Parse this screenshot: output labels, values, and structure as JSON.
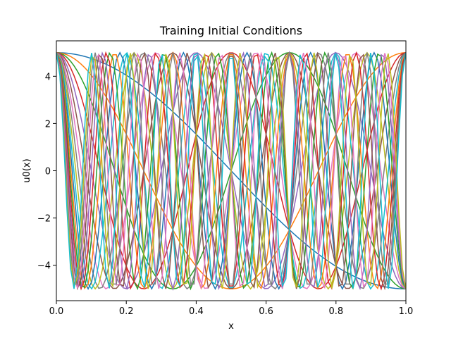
{
  "chart_data": {
    "type": "line",
    "title": "Training Initial Conditions",
    "xlabel": "x",
    "ylabel": "u0(x)",
    "xlim": [
      0,
      1
    ],
    "ylim": [
      -5.5,
      5.5
    ],
    "x_ticks": [
      0.0,
      0.2,
      0.4,
      0.6,
      0.8,
      1.0
    ],
    "x_tick_labels": [
      "0.0",
      "0.2",
      "0.4",
      "0.6",
      "0.8",
      "1.0"
    ],
    "y_ticks": [
      -4,
      -2,
      0,
      2,
      4
    ],
    "y_tick_labels": [
      "−4",
      "−2",
      "0",
      "2",
      "4"
    ],
    "grid": false,
    "legend": false,
    "function": "u0(x) = 5·cos(k·π·x)",
    "sample_points": 100,
    "series": [
      {
        "k": 1,
        "color": "#1f77b4"
      },
      {
        "k": 2,
        "color": "#ff7f0e"
      },
      {
        "k": 3,
        "color": "#2ca02c"
      },
      {
        "k": 4,
        "color": "#d62728"
      },
      {
        "k": 5,
        "color": "#9467bd"
      },
      {
        "k": 6,
        "color": "#8c564b"
      },
      {
        "k": 7,
        "color": "#e377c2"
      },
      {
        "k": 8,
        "color": "#7f7f7f"
      },
      {
        "k": 9,
        "color": "#bcbd22"
      },
      {
        "k": 10,
        "color": "#17becf"
      },
      {
        "k": 11,
        "color": "#1f77b4"
      },
      {
        "k": 12,
        "color": "#ff7f0e"
      },
      {
        "k": 13,
        "color": "#2ca02c"
      },
      {
        "k": 14,
        "color": "#d62728"
      },
      {
        "k": 15,
        "color": "#9467bd"
      },
      {
        "k": 16,
        "color": "#8c564b"
      },
      {
        "k": 17,
        "color": "#e377c2"
      },
      {
        "k": 18,
        "color": "#7f7f7f"
      },
      {
        "k": 19,
        "color": "#bcbd22"
      },
      {
        "k": 20,
        "color": "#17becf"
      }
    ]
  }
}
